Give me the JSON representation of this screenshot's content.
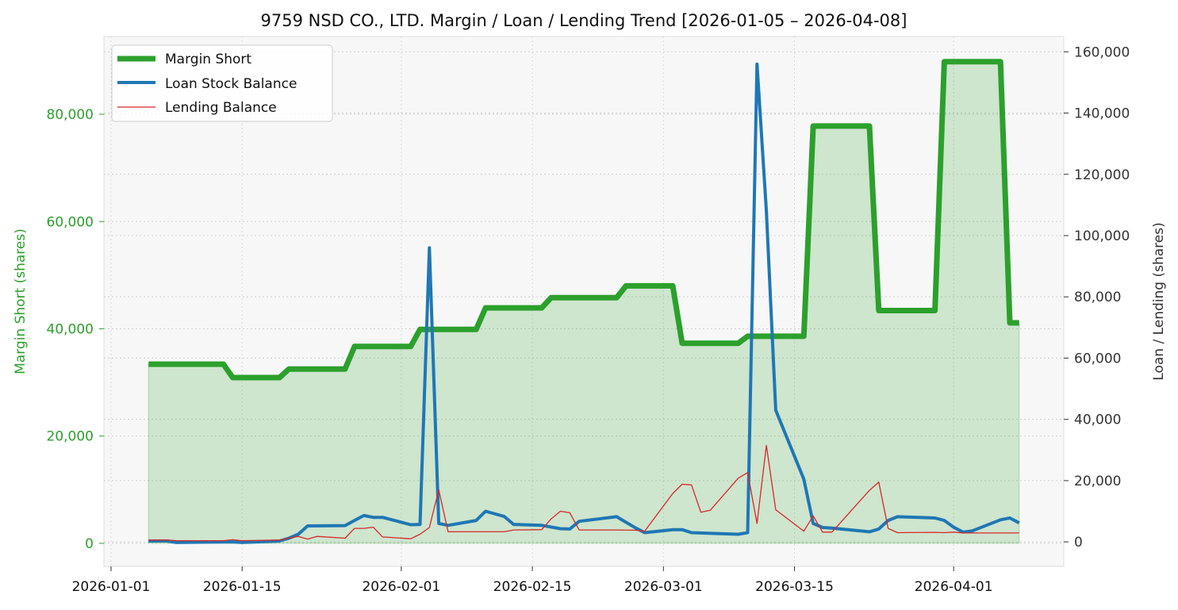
{
  "chart_data": {
    "type": "line",
    "title": "9759 NSD CO., LTD. Margin / Loan / Lending Trend [2026-01-05 – 2026-04-08]",
    "ylabel_left": "Margin Short (shares)",
    "ylabel_right": "Loan / Lending (shares)",
    "xlabel": "",
    "x_range": [
      "2026-01-01",
      "2026-04-12"
    ],
    "x_ticks": [
      "2026-01-01",
      "2026-01-15",
      "2026-02-01",
      "2026-02-15",
      "2026-03-01",
      "2026-03-15",
      "2026-04-01"
    ],
    "ylim_left": [
      -4300,
      94500
    ],
    "yticks_left": [
      0,
      20000,
      40000,
      60000,
      80000
    ],
    "yticks_left_labels": [
      "0",
      "20,000",
      "40,000",
      "60,000",
      "80,000"
    ],
    "ylim_right": [
      -8000,
      165000
    ],
    "yticks_right": [
      0,
      20000,
      40000,
      60000,
      80000,
      100000,
      120000,
      140000,
      160000
    ],
    "yticks_right_labels": [
      "0",
      "20,000",
      "40,000",
      "60,000",
      "80,000",
      "100,000",
      "120,000",
      "140,000",
      "160,000"
    ],
    "grid": true,
    "legend_position": "top-left",
    "series": [
      {
        "name": "Margin Short",
        "axis": "left",
        "color": "#2ca02c",
        "style": "thick-line-with-fill",
        "points": [
          [
            "2026-01-05",
            33400
          ],
          [
            "2026-01-12",
            33400
          ],
          [
            "2026-01-13",
            33400
          ],
          [
            "2026-01-14",
            30900
          ],
          [
            "2026-01-19",
            30900
          ],
          [
            "2026-01-20",
            32500
          ],
          [
            "2026-01-26",
            32500
          ],
          [
            "2026-01-27",
            36700
          ],
          [
            "2026-02-02",
            36700
          ],
          [
            "2026-02-03",
            39900
          ],
          [
            "2026-02-09",
            39900
          ],
          [
            "2026-02-10",
            43900
          ],
          [
            "2026-02-16",
            43900
          ],
          [
            "2026-02-17",
            45800
          ],
          [
            "2026-02-24",
            45800
          ],
          [
            "2026-02-25",
            48000
          ],
          [
            "2026-03-02",
            48000
          ],
          [
            "2026-03-03",
            37300
          ],
          [
            "2026-03-09",
            37300
          ],
          [
            "2026-03-10",
            38600
          ],
          [
            "2026-03-16",
            38600
          ],
          [
            "2026-03-17",
            77800
          ],
          [
            "2026-03-23",
            77800
          ],
          [
            "2026-03-24",
            43400
          ],
          [
            "2026-03-30",
            43400
          ],
          [
            "2026-03-31",
            89800
          ],
          [
            "2026-04-06",
            89800
          ],
          [
            "2026-04-07",
            41100
          ],
          [
            "2026-04-08",
            41100
          ]
        ]
      },
      {
        "name": "Loan Stock Balance",
        "axis": "right",
        "color": "#1f77b4",
        "style": "line",
        "points": [
          [
            "2026-01-05",
            300
          ],
          [
            "2026-01-07",
            300
          ],
          [
            "2026-01-08",
            -200
          ],
          [
            "2026-01-14",
            0
          ],
          [
            "2026-01-15",
            -200
          ],
          [
            "2026-01-19",
            300
          ],
          [
            "2026-01-20",
            1200
          ],
          [
            "2026-01-21",
            2500
          ],
          [
            "2026-01-22",
            5200
          ],
          [
            "2026-01-26",
            5300
          ],
          [
            "2026-01-27",
            7000
          ],
          [
            "2026-01-28",
            8600
          ],
          [
            "2026-01-29",
            8000
          ],
          [
            "2026-01-30",
            8000
          ],
          [
            "2026-02-02",
            5600
          ],
          [
            "2026-02-03",
            5700
          ],
          [
            "2026-02-04",
            96000
          ],
          [
            "2026-02-05",
            6000
          ],
          [
            "2026-02-06",
            5400
          ],
          [
            "2026-02-09",
            7000
          ],
          [
            "2026-02-10",
            10000
          ],
          [
            "2026-02-12",
            8300
          ],
          [
            "2026-02-13",
            5700
          ],
          [
            "2026-02-16",
            5400
          ],
          [
            "2026-02-18",
            4300
          ],
          [
            "2026-02-19",
            4200
          ],
          [
            "2026-02-20",
            6700
          ],
          [
            "2026-02-24",
            8200
          ],
          [
            "2026-02-26",
            4600
          ],
          [
            "2026-02-27",
            3000
          ],
          [
            "2026-03-02",
            4000
          ],
          [
            "2026-03-03",
            4000
          ],
          [
            "2026-03-04",
            3000
          ],
          [
            "2026-03-09",
            2500
          ],
          [
            "2026-03-10",
            3000
          ],
          [
            "2026-03-11",
            156000
          ],
          [
            "2026-03-12",
            108000
          ],
          [
            "2026-03-13",
            43000
          ],
          [
            "2026-03-16",
            20500
          ],
          [
            "2026-03-17",
            6000
          ],
          [
            "2026-03-18",
            4700
          ],
          [
            "2026-03-19",
            4500
          ],
          [
            "2026-03-23",
            3300
          ],
          [
            "2026-03-24",
            4200
          ],
          [
            "2026-03-25",
            7000
          ],
          [
            "2026-03-26",
            8200
          ],
          [
            "2026-03-30",
            7800
          ],
          [
            "2026-03-31",
            7000
          ],
          [
            "2026-04-01",
            4800
          ],
          [
            "2026-04-02",
            3200
          ],
          [
            "2026-04-03",
            3600
          ],
          [
            "2026-04-06",
            7200
          ],
          [
            "2026-04-07",
            7800
          ],
          [
            "2026-04-08",
            6200
          ]
        ]
      },
      {
        "name": "Lending Balance",
        "axis": "right",
        "color": "#d62728",
        "style": "thin-line",
        "points": [
          [
            "2026-01-05",
            600
          ],
          [
            "2026-01-07",
            600
          ],
          [
            "2026-01-08",
            400
          ],
          [
            "2026-01-13",
            400
          ],
          [
            "2026-01-14",
            700
          ],
          [
            "2026-01-15",
            400
          ],
          [
            "2026-01-19",
            600
          ],
          [
            "2026-01-20",
            1200
          ],
          [
            "2026-01-21",
            1800
          ],
          [
            "2026-01-22",
            900
          ],
          [
            "2026-01-23",
            1800
          ],
          [
            "2026-01-26",
            1200
          ],
          [
            "2026-01-27",
            4400
          ],
          [
            "2026-01-28",
            4400
          ],
          [
            "2026-01-29",
            4800
          ],
          [
            "2026-01-30",
            1600
          ],
          [
            "2026-02-02",
            1000
          ],
          [
            "2026-02-03",
            2500
          ],
          [
            "2026-02-04",
            4700
          ],
          [
            "2026-02-05",
            17000
          ],
          [
            "2026-02-06",
            3300
          ],
          [
            "2026-02-09",
            3300
          ],
          [
            "2026-02-10",
            3300
          ],
          [
            "2026-02-12",
            3300
          ],
          [
            "2026-02-13",
            3900
          ],
          [
            "2026-02-16",
            4000
          ],
          [
            "2026-02-17",
            7500
          ],
          [
            "2026-02-18",
            10000
          ],
          [
            "2026-02-19",
            9500
          ],
          [
            "2026-02-20",
            3900
          ],
          [
            "2026-02-24",
            3900
          ],
          [
            "2026-02-26",
            3800
          ],
          [
            "2026-02-27",
            3500
          ],
          [
            "2026-03-02",
            15800
          ],
          [
            "2026-03-03",
            18800
          ],
          [
            "2026-03-04",
            18600
          ],
          [
            "2026-03-05",
            9700
          ],
          [
            "2026-03-06",
            10300
          ],
          [
            "2026-03-09",
            20800
          ],
          [
            "2026-03-10",
            22600
          ],
          [
            "2026-03-11",
            6000
          ],
          [
            "2026-03-12",
            31500
          ],
          [
            "2026-03-13",
            10500
          ],
          [
            "2026-03-16",
            3500
          ],
          [
            "2026-03-17",
            8500
          ],
          [
            "2026-03-18",
            3200
          ],
          [
            "2026-03-19",
            3200
          ],
          [
            "2026-03-23",
            16800
          ],
          [
            "2026-03-24",
            19500
          ],
          [
            "2026-03-25",
            4400
          ],
          [
            "2026-03-26",
            3000
          ],
          [
            "2026-03-30",
            3100
          ],
          [
            "2026-03-31",
            3000
          ],
          [
            "2026-04-01",
            3200
          ],
          [
            "2026-04-02",
            2900
          ],
          [
            "2026-04-06",
            2900
          ],
          [
            "2026-04-07",
            2900
          ],
          [
            "2026-04-08",
            2900
          ]
        ]
      }
    ]
  }
}
